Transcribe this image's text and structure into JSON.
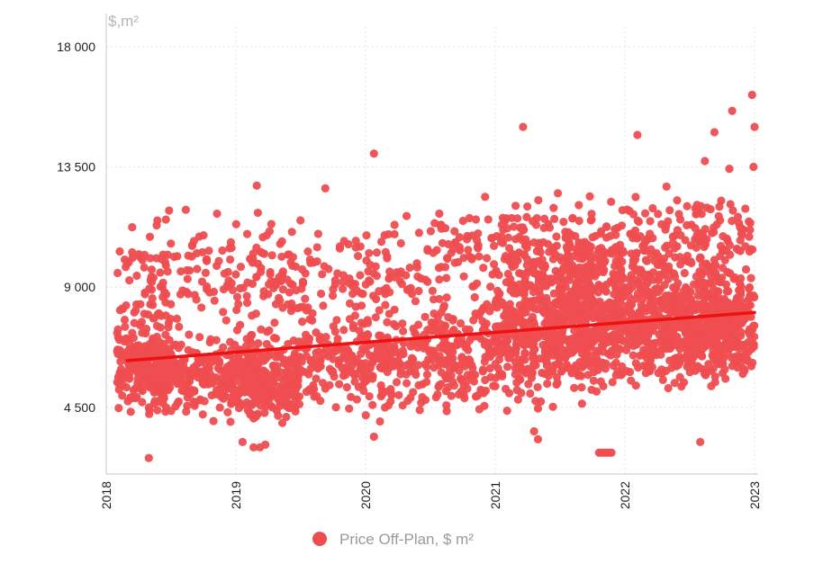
{
  "chart_data": {
    "type": "scatter",
    "y_unit_label": "$,m²",
    "legend": {
      "label": "Price Off-Plan, $ m²",
      "color": "#ee4d50"
    },
    "colors": {
      "points": "#ee4d50",
      "trend": "#ee1111",
      "axis": "#c8c8c8",
      "grid": "#e4e4e4"
    },
    "xlim": [
      "2018-01-01",
      "2023-01-01"
    ],
    "ylim": [
      2000,
      18000
    ],
    "x_ticks": [
      "2018",
      "2019",
      "2020",
      "2021",
      "2022",
      "2023"
    ],
    "y_ticks": [
      {
        "value": 4500,
        "label": "4 500"
      },
      {
        "value": 9000,
        "label": "9 000"
      },
      {
        "value": 13500,
        "label": "13 500"
      },
      {
        "value": 18000,
        "label": "18 000"
      }
    ],
    "grid": true,
    "legend_position": "bottom-center",
    "trend": {
      "start": [
        "2018-03-01",
        6250
      ],
      "end": [
        "2023-01-01",
        8050
      ]
    },
    "series": [
      {
        "clusters": [
          {
            "from": "2018-02-01",
            "to": "2018-06-30",
            "center": 6000,
            "spread": 900,
            "count": 200
          },
          {
            "from": "2018-02-01",
            "to": "2018-06-30",
            "center": 9000,
            "spread": 1300,
            "count": 55
          },
          {
            "from": "2018-05-01",
            "to": "2018-12-31",
            "center": 5700,
            "spread": 850,
            "count": 230
          },
          {
            "from": "2018-05-01",
            "to": "2018-12-31",
            "center": 9300,
            "spread": 1300,
            "count": 75
          },
          {
            "from": "2019-01-01",
            "to": "2019-06-30",
            "center": 5600,
            "spread": 900,
            "count": 260
          },
          {
            "from": "2019-01-01",
            "to": "2019-06-30",
            "center": 9600,
            "spread": 1200,
            "count": 80
          },
          {
            "from": "2019-07-01",
            "to": "2019-12-31",
            "center": 6300,
            "spread": 1100,
            "count": 130
          },
          {
            "from": "2019-07-01",
            "to": "2019-12-31",
            "center": 9300,
            "spread": 1200,
            "count": 55
          },
          {
            "from": "2020-01-01",
            "to": "2020-06-30",
            "center": 6300,
            "spread": 1100,
            "count": 150
          },
          {
            "from": "2020-01-01",
            "to": "2020-06-30",
            "center": 9500,
            "spread": 1300,
            "count": 55
          },
          {
            "from": "2020-07-01",
            "to": "2020-12-31",
            "center": 6700,
            "spread": 1200,
            "count": 180
          },
          {
            "from": "2020-07-01",
            "to": "2020-12-31",
            "center": 10200,
            "spread": 1100,
            "count": 60
          },
          {
            "from": "2021-01-01",
            "to": "2021-06-30",
            "center": 7300,
            "spread": 1400,
            "count": 320
          },
          {
            "from": "2021-01-01",
            "to": "2021-06-30",
            "center": 10300,
            "spread": 1200,
            "count": 110
          },
          {
            "from": "2021-07-01",
            "to": "2021-12-31",
            "center": 7800,
            "spread": 1500,
            "count": 380
          },
          {
            "from": "2021-07-01",
            "to": "2021-12-31",
            "center": 10200,
            "spread": 1100,
            "count": 120
          },
          {
            "from": "2022-01-01",
            "to": "2022-06-30",
            "center": 7700,
            "spread": 1300,
            "count": 330
          },
          {
            "from": "2022-01-01",
            "to": "2022-06-30",
            "center": 10400,
            "spread": 1300,
            "count": 90
          },
          {
            "from": "2022-07-01",
            "to": "2023-01-01",
            "center": 7500,
            "spread": 1200,
            "count": 330
          },
          {
            "from": "2022-07-01",
            "to": "2023-01-01",
            "center": 10600,
            "spread": 1600,
            "count": 110
          }
        ],
        "points": [
          [
            "2018-05-01",
            2600
          ],
          [
            "2019-01-20",
            3200
          ],
          [
            "2019-02-20",
            3000
          ],
          [
            "2019-03-10",
            3000
          ],
          [
            "2019-03-25",
            3100
          ],
          [
            "2020-01-25",
            3400
          ],
          [
            "2021-05-01",
            3300
          ],
          [
            "2021-04-20",
            3600
          ],
          [
            "2021-10-20",
            2800
          ],
          [
            "2021-10-27",
            2800
          ],
          [
            "2021-11-03",
            2800
          ],
          [
            "2021-11-10",
            2800
          ],
          [
            "2021-11-17",
            2800
          ],
          [
            "2021-11-24",
            2800
          ],
          [
            "2022-08-01",
            3200
          ],
          [
            "2020-01-25",
            14000
          ],
          [
            "2021-03-20",
            15000
          ],
          [
            "2022-02-05",
            14700
          ],
          [
            "2022-09-10",
            14800
          ],
          [
            "2022-10-30",
            15600
          ],
          [
            "2022-12-25",
            16200
          ],
          [
            "2023-01-01",
            15000
          ],
          [
            "2022-12-20",
            11400
          ],
          [
            "2019-03-01",
            12800
          ],
          [
            "2019-09-10",
            12700
          ]
        ]
      }
    ]
  }
}
